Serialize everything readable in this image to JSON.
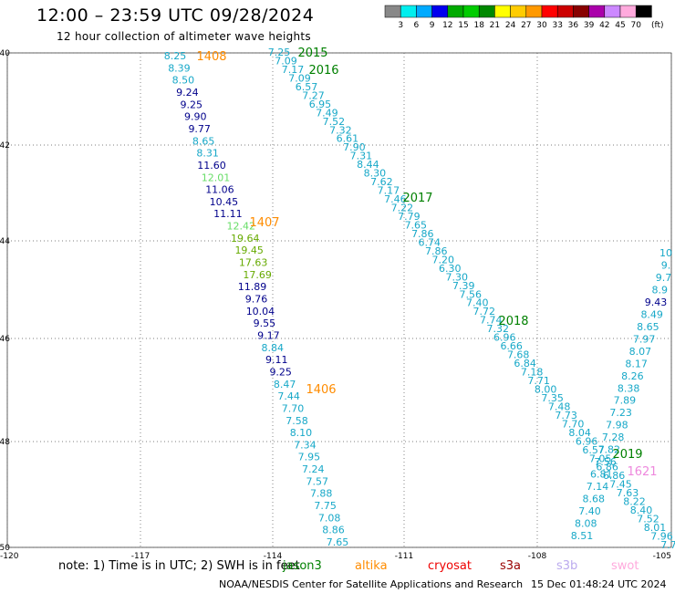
{
  "header": {
    "title": "12:00 – 23:59 UTC 09/28/2024",
    "subtitle": "12 hour collection of altimeter wave heights"
  },
  "colorbar": {
    "unit": "(ft)",
    "colors": [
      "#888888",
      "#00eeee",
      "#00aaff",
      "#0000ee",
      "#00aa00",
      "#00cc00",
      "#008800",
      "#ffff00",
      "#ffcc00",
      "#ff9900",
      "#ff0000",
      "#cc0000",
      "#880000",
      "#aa00aa",
      "#cc88ff",
      "#ffaadd",
      "#000000"
    ],
    "labels": [
      "3",
      "6",
      "9",
      "12",
      "15",
      "18",
      "21",
      "24",
      "27",
      "30",
      "33",
      "36",
      "39",
      "42",
      "45",
      "70"
    ]
  },
  "axes": {
    "lat_labels": [
      "40",
      "42",
      "44",
      "46",
      "48",
      "50"
    ],
    "lon_labels": [
      "-120",
      "-117",
      "-114",
      "-111",
      "-108",
      "-105"
    ]
  },
  "map_data": {
    "value_colors": {
      "cyan": "#17a8c8",
      "navy": "#00008b",
      "lightgreen": "#66dd66",
      "green": "#228b22",
      "olive": "#66aa00"
    },
    "passes": [
      {
        "label": "1408",
        "color": "#ff8c00"
      },
      {
        "label": "1407",
        "color": "#ff8c00"
      },
      {
        "label": "1406",
        "color": "#ff8c00"
      },
      {
        "label": "2015",
        "color": "#008000"
      },
      {
        "label": "2016",
        "color": "#008000"
      },
      {
        "label": "2017",
        "color": "#008000"
      },
      {
        "label": "2018",
        "color": "#008000"
      },
      {
        "label": "2019",
        "color": "#008000"
      },
      {
        "label": "1621",
        "color": "#ee88dd"
      }
    ],
    "track_a": [
      {
        "v": "8.25",
        "c": "cyan"
      },
      {
        "v": "8.39",
        "c": "cyan"
      },
      {
        "v": "8.50",
        "c": "cyan"
      },
      {
        "v": "9.24",
        "c": "navy"
      },
      {
        "v": "9.25",
        "c": "navy"
      },
      {
        "v": "9.90",
        "c": "navy"
      },
      {
        "v": "9.77",
        "c": "navy"
      },
      {
        "v": "8.65",
        "c": "cyan"
      },
      {
        "v": "8.31",
        "c": "cyan"
      },
      {
        "v": "11.60",
        "c": "navy"
      },
      {
        "v": "12.01",
        "c": "lightgreen"
      },
      {
        "v": "11.06",
        "c": "navy"
      },
      {
        "v": "10.45",
        "c": "navy"
      },
      {
        "v": "11.11",
        "c": "navy"
      },
      {
        "v": "12.42",
        "c": "lightgreen"
      },
      {
        "v": "19.64",
        "c": "olive"
      },
      {
        "v": "19.45",
        "c": "olive"
      },
      {
        "v": "17.63",
        "c": "olive"
      },
      {
        "v": "17.69",
        "c": "olive"
      },
      {
        "v": "11.89",
        "c": "navy"
      },
      {
        "v": "9.76",
        "c": "navy"
      },
      {
        "v": "10.04",
        "c": "navy"
      },
      {
        "v": "9.55",
        "c": "navy"
      },
      {
        "v": "9.17",
        "c": "navy"
      },
      {
        "v": "8.84",
        "c": "cyan"
      },
      {
        "v": "9.11",
        "c": "navy"
      },
      {
        "v": "9.25",
        "c": "navy"
      },
      {
        "v": "8.47",
        "c": "cyan"
      },
      {
        "v": "7.44",
        "c": "cyan"
      },
      {
        "v": "7.70",
        "c": "cyan"
      },
      {
        "v": "7.58",
        "c": "cyan"
      },
      {
        "v": "8.10",
        "c": "cyan"
      },
      {
        "v": "7.34",
        "c": "cyan"
      },
      {
        "v": "7.95",
        "c": "cyan"
      },
      {
        "v": "7.24",
        "c": "cyan"
      },
      {
        "v": "7.57",
        "c": "cyan"
      },
      {
        "v": "7.88",
        "c": "cyan"
      },
      {
        "v": "7.75",
        "c": "cyan"
      },
      {
        "v": "7.08",
        "c": "cyan"
      },
      {
        "v": "8.86",
        "c": "cyan"
      },
      {
        "v": "7.65",
        "c": "cyan"
      }
    ],
    "track_b": [
      "7.25",
      "7.09",
      "7.17",
      "7.09",
      "6.57",
      "7.27",
      "6.95",
      "7.49",
      "7.52",
      "7.32",
      "6.61",
      "7.90",
      "7.31",
      "8.44",
      "8.30",
      "7.62",
      "7.17",
      "7.46",
      "7.22",
      "7.79",
      "7.65",
      "7.86",
      "6.74",
      "7.86",
      "7.20",
      "6.30",
      "7.30",
      "7.39",
      "7.56",
      "7.40",
      "7.72",
      "7.74",
      "7.32",
      "6.96",
      "6.66",
      "7.68",
      "6.84",
      "7.18",
      "7.71",
      "8.00",
      "7.35",
      "7.48",
      "7.73",
      "7.70",
      "8.04",
      "6.96",
      "6.57",
      "7.05",
      "6.86",
      "6.86",
      "7.45",
      "7.63",
      "8.22",
      "8.40",
      "7.52",
      "8.01",
      "7.96",
      "7.7"
    ],
    "track_c": [
      {
        "v": "10",
        "c": "cyan"
      },
      {
        "v": "9.",
        "c": "cyan"
      },
      {
        "v": "9.7",
        "c": "cyan"
      },
      {
        "v": "8.9",
        "c": "cyan"
      },
      {
        "v": "9.43",
        "c": "navy"
      },
      {
        "v": "8.49",
        "c": "cyan"
      },
      {
        "v": "8.65",
        "c": "cyan"
      },
      {
        "v": "7.97",
        "c": "cyan"
      },
      {
        "v": "8.07",
        "c": "cyan"
      },
      {
        "v": "8.17",
        "c": "cyan"
      },
      {
        "v": "8.26",
        "c": "cyan"
      },
      {
        "v": "8.38",
        "c": "cyan"
      },
      {
        "v": "7.89",
        "c": "cyan"
      },
      {
        "v": "7.23",
        "c": "cyan"
      },
      {
        "v": "7.98",
        "c": "cyan"
      },
      {
        "v": "7.28",
        "c": "cyan"
      },
      {
        "v": "7.82",
        "c": "cyan"
      },
      {
        "v": "7.56",
        "c": "cyan"
      },
      {
        "v": "6.81",
        "c": "cyan"
      },
      {
        "v": "7.14",
        "c": "cyan"
      },
      {
        "v": "8.68",
        "c": "cyan"
      },
      {
        "v": "7.40",
        "c": "cyan"
      },
      {
        "v": "8.08",
        "c": "cyan"
      },
      {
        "v": "8.51",
        "c": "cyan"
      }
    ]
  },
  "footer": {
    "note": "note:  1) Time is in UTC;  2) SWH is in feet",
    "satellites": [
      {
        "name": "jason3",
        "color": "#008000"
      },
      {
        "name": "altika",
        "color": "#ff8c00"
      },
      {
        "name": "cryosat",
        "color": "#ee0000"
      },
      {
        "name": "s3a",
        "color": "#990000"
      },
      {
        "name": "s3b",
        "color": "#bbaaee"
      },
      {
        "name": "swot",
        "color": "#ffaadd"
      }
    ],
    "credit": "NOAA/NESDIS Center for Satellite Applications and Research",
    "timestamp": "15 Dec 01:48:24 UTC 2024"
  }
}
